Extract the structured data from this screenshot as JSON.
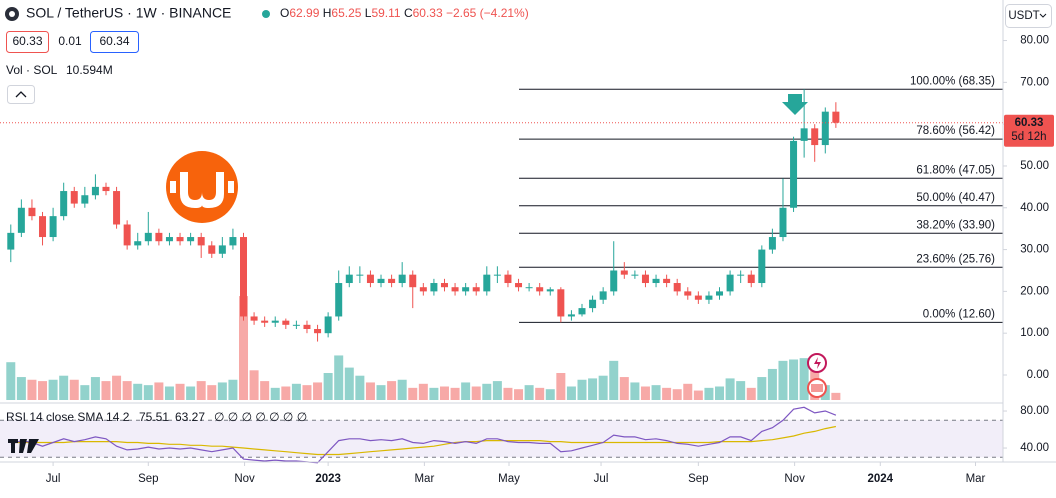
{
  "chart_data": {
    "type": "candlestick",
    "title": "SOL / TetherUS · 1W · BINANCE",
    "ohlc_labels": [
      "O",
      "H",
      "L",
      "C"
    ],
    "change_text": "−2.65 (−4.21%)",
    "sell_price": "60.33",
    "spread": "0.01",
    "buy_price": "60.34",
    "volume_title": "Vol · SOL",
    "volume_value_label": "10.594M",
    "currency": "USDT",
    "countdown": "5d 12h",
    "rsi_title": "RSI 14 close SMA 14 2",
    "rsi_extra": "∅ ∅ ∅ ∅ ∅ ∅ ∅",
    "up_color": "#26a69a",
    "down_color": "#ef5350",
    "rsi_color": "#7e57c2",
    "sma_color": "#d9b800",
    "open": [
      30,
      34,
      40,
      38,
      33,
      38,
      44,
      41,
      43,
      45,
      44,
      36,
      31,
      32,
      34,
      32,
      33,
      32,
      33,
      31,
      29,
      31,
      33,
      14,
      13,
      12.5,
      13,
      12,
      12,
      11,
      10,
      14,
      22,
      24,
      24,
      22,
      23,
      22,
      24,
      21,
      20,
      22,
      21,
      20,
      21,
      20,
      24,
      24,
      22,
      21,
      21,
      20,
      20.5,
      14,
      14.5,
      16,
      18,
      20,
      25,
      24,
      24,
      22,
      23,
      22,
      20,
      19,
      18,
      19,
      20,
      24,
      24,
      22,
      30,
      33,
      40,
      56,
      59,
      55,
      62.99
    ],
    "high": [
      36,
      42,
      42,
      39,
      40,
      46,
      45,
      45,
      48,
      46,
      45,
      37,
      34,
      39,
      35,
      34,
      34,
      34,
      34,
      32,
      33,
      35,
      34,
      15,
      14,
      14,
      13.5,
      13,
      13,
      12,
      15,
      25,
      26,
      26,
      25,
      24,
      24,
      27,
      25,
      22,
      23,
      23,
      22,
      22,
      22,
      26,
      26,
      25,
      23,
      22,
      22,
      21,
      21,
      15.5,
      17,
      19,
      21,
      32,
      27,
      25,
      25,
      24,
      24,
      23,
      21,
      20,
      20,
      21,
      25,
      25,
      25,
      31,
      35,
      47,
      57,
      68.35,
      60,
      64,
      65.25
    ],
    "low": [
      27,
      33,
      37,
      31,
      32,
      37,
      40,
      40,
      42,
      43,
      35,
      30,
      30,
      31,
      31,
      31,
      31,
      31,
      28,
      28,
      28,
      30,
      13,
      12,
      11.5,
      11.5,
      11,
      11,
      10,
      8,
      9,
      13,
      21,
      22,
      21,
      21,
      21,
      21,
      16,
      19,
      19,
      20,
      19,
      19,
      19,
      19,
      22,
      21,
      20,
      20,
      19,
      19,
      12.6,
      13,
      14,
      15,
      17,
      19,
      23,
      23,
      21,
      21,
      21,
      19,
      18,
      17,
      17,
      18,
      19,
      22,
      21,
      21,
      29,
      32,
      39,
      52,
      51,
      53,
      59.11
    ],
    "close": [
      34,
      40,
      38,
      33,
      38,
      44,
      41,
      43,
      45,
      44,
      36,
      31,
      32,
      34,
      32,
      33,
      32,
      33,
      31,
      29,
      31,
      33,
      14,
      13,
      12.5,
      13,
      12,
      12,
      11,
      10,
      14,
      22,
      24,
      24,
      22,
      23,
      22,
      24,
      21,
      20,
      22,
      21,
      20,
      21,
      20,
      24,
      24,
      22,
      21,
      21,
      20,
      20.5,
      14,
      14.5,
      16,
      18,
      20,
      25,
      24,
      24,
      22,
      23,
      22,
      20,
      19,
      18,
      19,
      20,
      24,
      24,
      22,
      30,
      33,
      40,
      56,
      59,
      55,
      62.99,
      60.33
    ],
    "volume": [
      56,
      34,
      30,
      28,
      30,
      36,
      30,
      22,
      34,
      28,
      36,
      28,
      24,
      22,
      26,
      20,
      24,
      20,
      28,
      22,
      26,
      30,
      154,
      44,
      28,
      18,
      20,
      24,
      22,
      26,
      40,
      66,
      48,
      36,
      26,
      22,
      28,
      30,
      18,
      24,
      18,
      20,
      18,
      26,
      20,
      24,
      28,
      18,
      16,
      22,
      18,
      16,
      40,
      20,
      30,
      32,
      36,
      58,
      34,
      26,
      20,
      22,
      18,
      16,
      24,
      14,
      18,
      20,
      32,
      28,
      18,
      34,
      46,
      58,
      60,
      62,
      56,
      22,
      10.594
    ],
    "rsi": [
      44,
      48,
      46,
      42,
      46,
      50,
      47,
      49,
      52,
      50,
      42,
      38,
      39,
      41,
      39,
      40,
      39,
      40,
      38,
      36,
      38,
      40,
      28,
      27,
      26,
      27,
      26,
      26,
      25,
      24,
      36,
      48,
      50,
      50,
      48,
      49,
      48,
      50,
      46,
      45,
      48,
      47,
      45,
      47,
      45,
      50,
      50,
      47,
      46,
      46,
      45,
      45,
      36,
      37,
      40,
      43,
      46,
      54,
      52,
      52,
      49,
      50,
      48,
      45,
      44,
      42,
      44,
      46,
      52,
      52,
      48,
      58,
      62,
      70,
      82,
      84,
      78,
      80,
      75.51
    ],
    "rsi_sma": [
      46,
      46,
      46,
      46,
      46,
      46,
      47,
      47,
      47,
      47,
      47,
      46,
      46,
      45,
      45,
      44,
      44,
      43,
      43,
      42,
      42,
      41,
      40,
      39,
      38,
      37,
      36,
      35,
      34,
      33,
      33,
      33,
      34,
      35,
      36,
      37,
      38,
      39,
      40,
      41,
      42,
      44,
      46,
      47,
      47,
      48,
      48,
      48,
      48,
      48,
      48,
      47,
      47,
      46,
      46,
      46,
      46,
      46,
      46,
      46,
      46,
      46,
      46,
      46,
      46,
      46,
      46,
      47,
      47,
      47,
      47,
      48,
      49,
      51,
      53,
      56,
      58,
      61,
      63.27
    ],
    "fib_levels": [
      {
        "label": "100.00% (68.35)",
        "value": 68.35
      },
      {
        "label": "78.60% (56.42)",
        "value": 56.42
      },
      {
        "label": "61.80% (47.05)",
        "value": 47.05
      },
      {
        "label": "50.00% (40.47)",
        "value": 40.47
      },
      {
        "label": "38.20% (33.90)",
        "value": 33.9
      },
      {
        "label": "23.60% (25.76)",
        "value": 25.76
      },
      {
        "label": "0.00% (12.60)",
        "value": 12.6
      }
    ],
    "xlim": [
      -1.02,
      93.8
    ],
    "xticks": [
      {
        "value": 4,
        "label": "Jul"
      },
      {
        "value": 13,
        "label": "Sep"
      },
      {
        "value": 22.1,
        "label": "Nov"
      },
      {
        "value": 30,
        "label": "2023"
      },
      {
        "value": 39.1,
        "label": "Mar"
      },
      {
        "value": 47.1,
        "label": "May"
      },
      {
        "value": 55.8,
        "label": "Jul"
      },
      {
        "value": 65,
        "label": "Sep"
      },
      {
        "value": 74.1,
        "label": "Nov"
      },
      {
        "value": 82.2,
        "label": "2024"
      },
      {
        "value": 91.2,
        "label": "Mar"
      }
    ],
    "ylim": [
      -6.46,
      89.7
    ],
    "yticks": [
      {
        "value": 80,
        "label": "80.00"
      },
      {
        "value": 70,
        "label": "70.00"
      },
      {
        "value": 60,
        "label": "60.00"
      },
      {
        "value": 50,
        "label": "50.00"
      },
      {
        "value": 40,
        "label": "40.00"
      },
      {
        "value": 30,
        "label": "30.00"
      },
      {
        "value": 20,
        "label": "20.00"
      },
      {
        "value": 10,
        "label": "10.00"
      },
      {
        "value": 0,
        "label": "0.00"
      }
    ],
    "volume_lim": [
      0,
      160
    ],
    "rsi_ylim": [
      24.9,
      87.6
    ],
    "rsi_yticks": [
      {
        "value": 80,
        "label": "80.00"
      },
      {
        "value": 40,
        "label": "40.00"
      }
    ],
    "rsi_band": [
      30,
      70
    ],
    "grid": false
  }
}
